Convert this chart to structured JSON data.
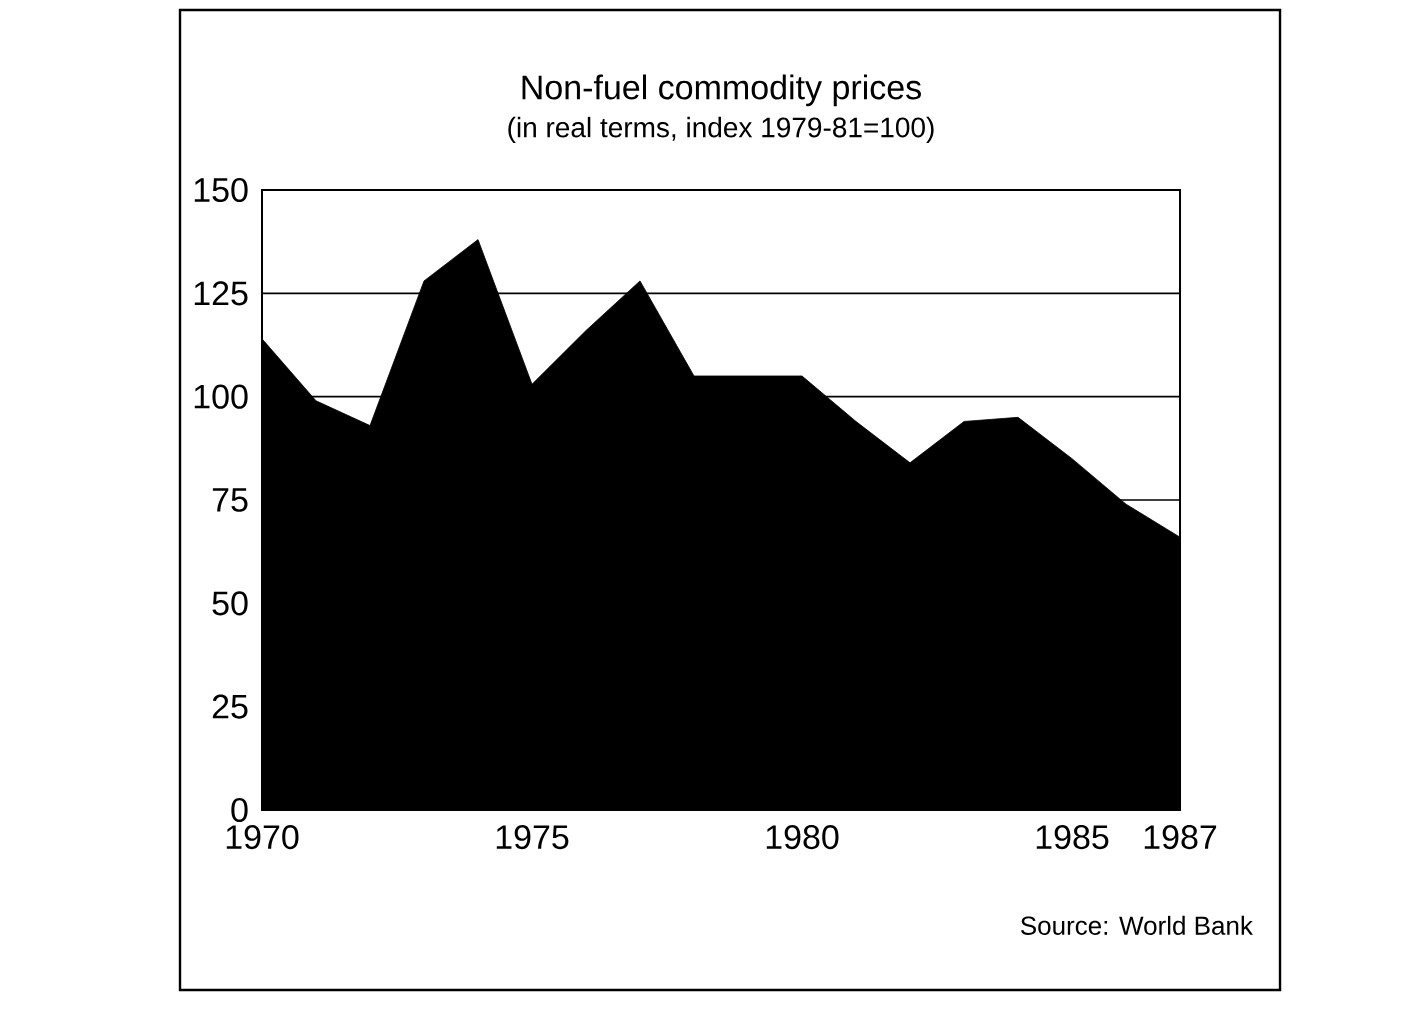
{
  "chart_data": {
    "type": "area",
    "title": "Non-fuel commodity prices",
    "subtitle": "(in real terms, index 1979-81=100)",
    "annotations": [
      "Source: World Bank"
    ],
    "x": [
      1970,
      1971,
      1972,
      1973,
      1974,
      1975,
      1976,
      1977,
      1978,
      1979,
      1980,
      1981,
      1982,
      1983,
      1984,
      1985,
      1986,
      1987
    ],
    "series": [
      {
        "color": "#000000",
        "values": [
          114,
          99,
          93,
          128,
          138,
          103,
          116,
          128,
          105,
          105,
          105,
          94,
          84,
          94,
          95,
          85,
          74,
          66
        ]
      }
    ],
    "xlim": [
      1970,
      1987
    ],
    "xticks": [
      1970,
      1975,
      1980,
      1985,
      1987
    ],
    "ylim": [
      0,
      150
    ],
    "yticks": [
      0,
      25,
      50,
      75,
      100,
      125,
      150
    ],
    "grid": "y"
  }
}
